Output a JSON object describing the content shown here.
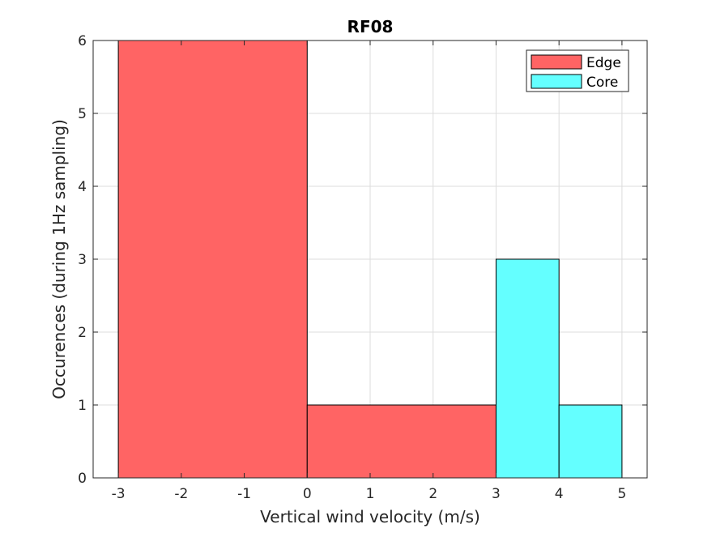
{
  "chart_data": {
    "type": "bar",
    "title": "RF08",
    "xlabel": "Vertical wind velocity (m/s)",
    "ylabel": "Occurences (during 1Hz sampling)",
    "xlim": [
      -3.4,
      5.4
    ],
    "ylim": [
      0,
      6
    ],
    "xticks": [
      "-3",
      "-2",
      "-1",
      "0",
      "1",
      "2",
      "3",
      "4",
      "5"
    ],
    "yticks": [
      "0",
      "1",
      "2",
      "3",
      "4",
      "5",
      "6"
    ],
    "grid": true,
    "legend_position": "top-right",
    "series": [
      {
        "name": "Edge",
        "color": "#ff6464",
        "bins": [
          {
            "x0": -3,
            "x1": 0,
            "value": 6
          },
          {
            "x0": 0,
            "x1": 3,
            "value": 1
          }
        ]
      },
      {
        "name": "Core",
        "color": "#64ffff",
        "bins": [
          {
            "x0": 3,
            "x1": 4,
            "value": 3
          },
          {
            "x0": 4,
            "x1": 5,
            "value": 1
          }
        ]
      }
    ]
  }
}
